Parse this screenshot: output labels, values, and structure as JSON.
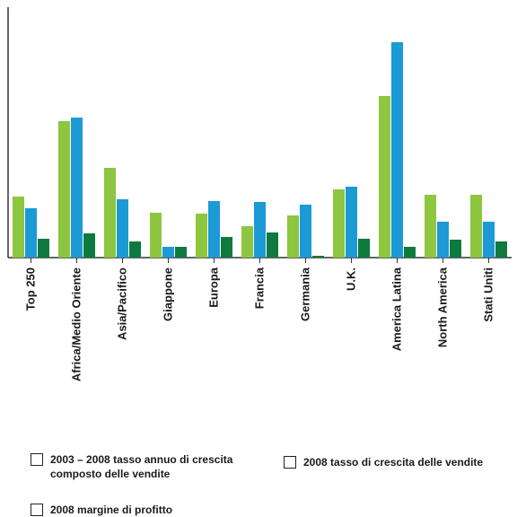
{
  "chart_data": {
    "type": "bar",
    "categories": [
      "Top 250",
      "Africa/Medio Oriente",
      "Asia/Pacifico",
      "Giappone",
      "Europa",
      "Francia",
      "Germania",
      "U.K.",
      "America Latina",
      "North America",
      "Stati Uniti"
    ],
    "series": [
      {
        "name": "2003 – 2008 tasso annuo di crescita composto delle vendite",
        "color": "#8dc63f",
        "values": [
          68,
          152,
          100,
          50,
          49,
          35,
          47,
          76,
          180,
          70,
          70
        ]
      },
      {
        "name": "2008 tasso di crescita delle vendite",
        "color": "#1b9ad6",
        "values": [
          55,
          156,
          65,
          12,
          63,
          62,
          59,
          79,
          240,
          40,
          40
        ]
      },
      {
        "name": "2008 margine di profitto",
        "color": "#0e7a3e",
        "values": [
          21,
          27,
          18,
          12,
          23,
          28,
          2,
          21,
          12,
          20,
          18
        ]
      }
    ],
    "ylim": [
      0,
      270
    ],
    "grid": false,
    "legend_position": "bottom"
  },
  "legend": {
    "item0_line1": "2003 – 2008 tasso annuo di crescita",
    "item0_line2": "composto delle vendite",
    "item1": "2008 tasso di crescita delle vendite",
    "item2": "2008 margine di profitto"
  }
}
